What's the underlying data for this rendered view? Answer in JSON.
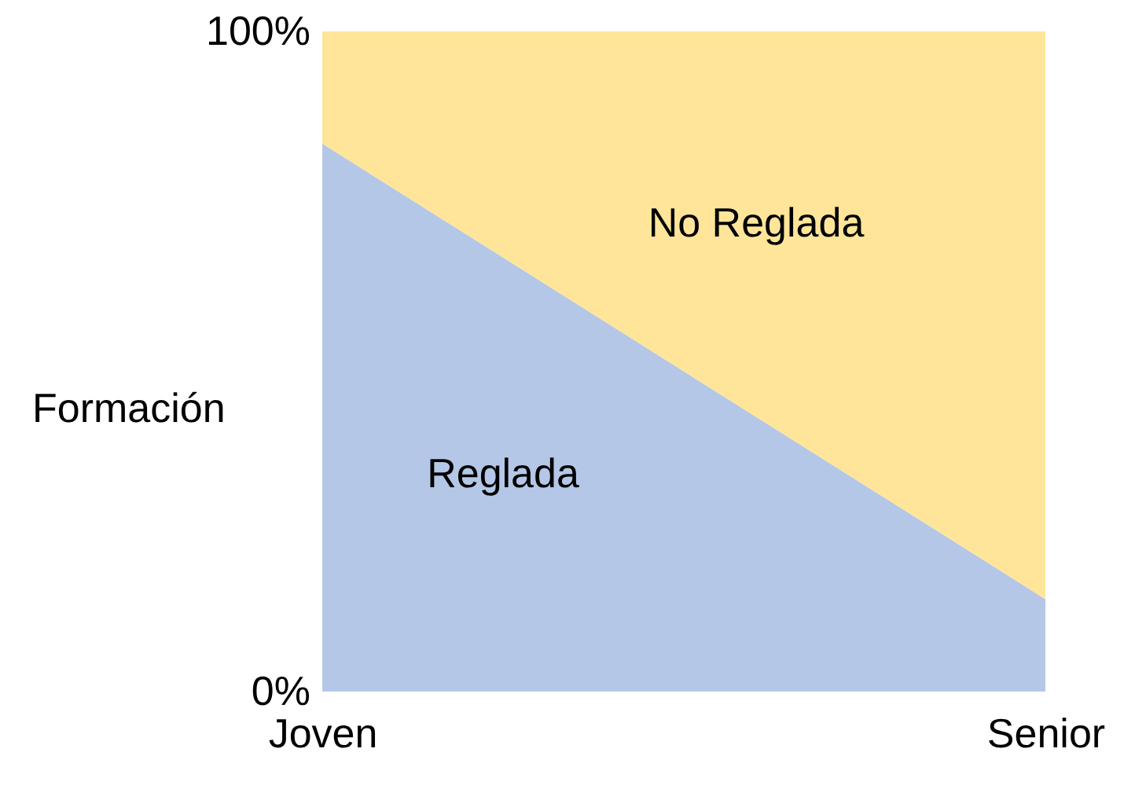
{
  "chart_data": {
    "type": "area",
    "stacked": true,
    "ylabel": "Formación",
    "categories": [
      "Joven",
      "Senior"
    ],
    "series": [
      {
        "name": "Reglada",
        "color": "#b4c7e7",
        "values": [
          83,
          14
        ]
      },
      {
        "name": "No Reglada",
        "color": "#fee599",
        "values": [
          17,
          86
        ]
      }
    ],
    "ylim": [
      0,
      100
    ],
    "yticks": [
      {
        "value": 0,
        "label": "0%"
      },
      {
        "value": 100,
        "label": "100%"
      }
    ]
  }
}
